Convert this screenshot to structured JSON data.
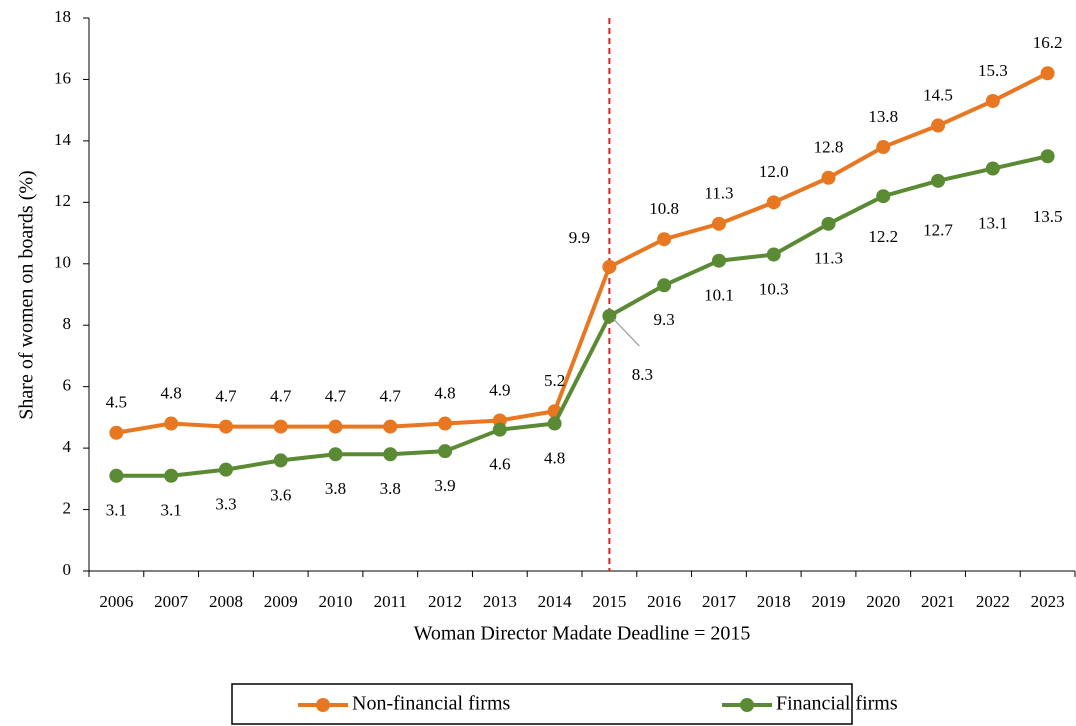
{
  "chart_data": {
    "type": "line",
    "x_label": "Woman Director Madate Deadline = 2015",
    "y_label": "Share of women on boards (%)",
    "categories": [
      "2006",
      "2007",
      "2008",
      "2009",
      "2010",
      "2011",
      "2012",
      "2013",
      "2014",
      "2015",
      "2016",
      "2017",
      "2018",
      "2019",
      "2020",
      "2021",
      "2022",
      "2023"
    ],
    "series": [
      {
        "name": "Non-financial firms",
        "color": "#e87722",
        "values": [
          4.5,
          4.8,
          4.7,
          4.7,
          4.7,
          4.7,
          4.8,
          4.9,
          5.2,
          9.9,
          10.8,
          11.3,
          12.0,
          12.8,
          13.8,
          14.5,
          15.3,
          16.2
        ],
        "value_labels": [
          "4.5",
          "4.8",
          "4.7",
          "4.7",
          "4.7",
          "4.7",
          "4.8",
          "4.9",
          "5.2",
          "9.9",
          "10.8",
          "11.3",
          "12.0",
          "12.8",
          "13.8",
          "14.5",
          "15.3",
          "16.2"
        ]
      },
      {
        "name": "Financial firms",
        "color": "#5a8a33",
        "values": [
          3.1,
          3.1,
          3.3,
          3.6,
          3.8,
          3.8,
          3.9,
          4.6,
          4.8,
          8.3,
          9.3,
          10.1,
          10.3,
          11.3,
          12.2,
          12.7,
          13.1,
          13.5
        ],
        "value_labels": [
          "3.1",
          "3.1",
          "3.3",
          "3.6",
          "3.8",
          "3.8",
          "3.9",
          "4.6",
          "4.8",
          "8.3",
          "9.3",
          "10.1",
          "10.3",
          "11.3",
          "12.2",
          "12.7",
          "13.1",
          "13.5"
        ]
      }
    ],
    "reference_line": {
      "x": "2015",
      "color": "#e02020",
      "style": "dashed"
    },
    "ylim": [
      0,
      18
    ],
    "yticks": [
      0,
      2,
      4,
      6,
      8,
      10,
      12,
      14,
      16,
      18
    ],
    "grid": false,
    "legend": "bottom"
  }
}
